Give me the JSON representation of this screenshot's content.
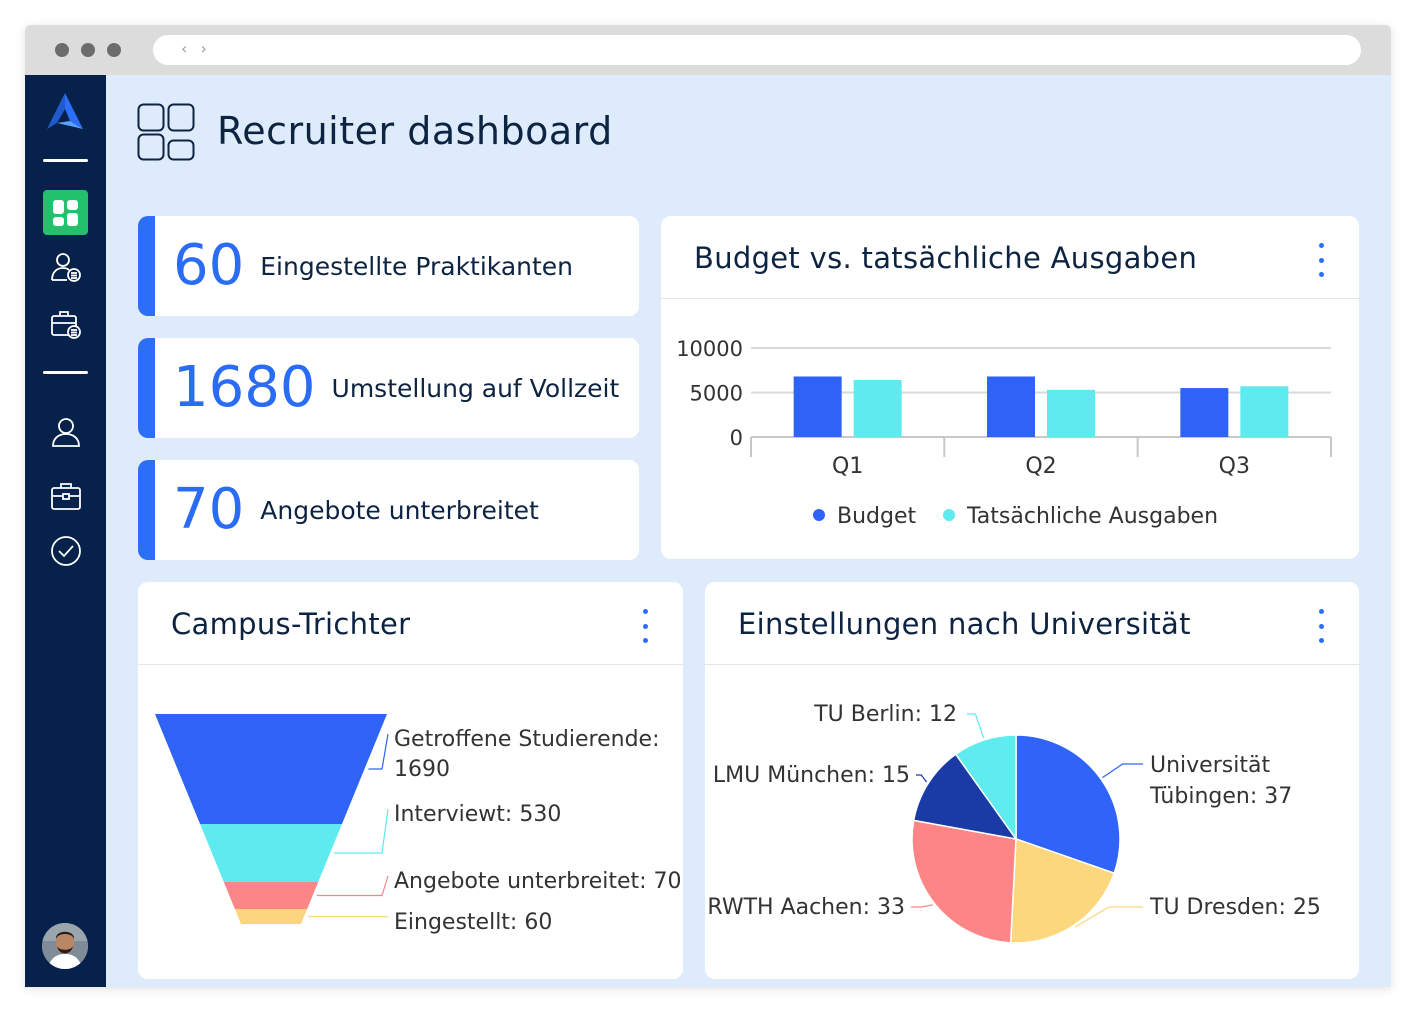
{
  "app": {
    "title": "Recruiter dashboard"
  },
  "browser": {
    "nav_arrows": "‹ ›"
  },
  "sidebar": {
    "items": [
      {
        "name": "dashboard",
        "icon": "dashboard-grid-icon",
        "active": true
      },
      {
        "name": "candidates",
        "icon": "user-list-icon",
        "active": false
      },
      {
        "name": "jobs-list",
        "icon": "briefcase-list-icon",
        "active": false
      },
      {
        "name": "profile",
        "icon": "user-icon",
        "active": false
      },
      {
        "name": "jobs",
        "icon": "briefcase-icon",
        "active": false
      },
      {
        "name": "tasks",
        "icon": "check-circle-icon",
        "active": false
      }
    ]
  },
  "kpis": [
    {
      "value": "60",
      "label": "Eingestellte Praktikanten"
    },
    {
      "value": "1680",
      "label": "Umstellung auf Vollzeit"
    },
    {
      "value": "70",
      "label": "Angebote unterbreitet"
    }
  ],
  "colors": {
    "accent": "#2b6ef7",
    "sidebar": "#06224b",
    "active_nav": "#23c16b",
    "background": "#deebfb",
    "budget": "#2f63f5",
    "actual": "#5eeaef",
    "funnel": [
      "#2f63f5",
      "#5eeaef",
      "#fb8686",
      "#fdd57e"
    ],
    "pie": [
      "#3063f7",
      "#fdd77d",
      "#fd8585",
      "#1a3aa6",
      "#5fecee"
    ]
  },
  "budget_card": {
    "title": "Budget vs. tatsächliche Ausgaben"
  },
  "funnel_card": {
    "title": "Campus-Trichter"
  },
  "university_card": {
    "title": "Einstellungen nach Universität"
  },
  "chart_data": [
    {
      "type": "bar",
      "title": "Budget vs. tatsächliche Ausgaben",
      "categories": [
        "Q1",
        "Q2",
        "Q3"
      ],
      "series": [
        {
          "name": "Budget",
          "values": [
            6800,
            6800,
            5500
          ]
        },
        {
          "name": "Tatsächliche Ausgaben",
          "values": [
            6400,
            5300,
            5700
          ]
        }
      ],
      "yticks": [
        "10000",
        "5000",
        "0"
      ],
      "ylim": [
        0,
        10000
      ],
      "grid": true,
      "legend": "bottom"
    },
    {
      "type": "funnel",
      "title": "Campus-Trichter",
      "stages": [
        {
          "label": "Getroffene Studierende: 1690",
          "value": 1690
        },
        {
          "label": "Interviewt: 530",
          "value": 530
        },
        {
          "label": "Angebote unterbreitet: 70",
          "value": 70
        },
        {
          "label": "Eingestellt: 60",
          "value": 60
        }
      ]
    },
    {
      "type": "pie",
      "title": "Einstellungen nach Universität",
      "slices": [
        {
          "label": "Universität",
          "label2": "Tübingen: 37",
          "value": 37
        },
        {
          "label": "TU Dresden: 25",
          "value": 25
        },
        {
          "label": "RWTH Aachen: 33",
          "value": 33
        },
        {
          "label": "LMU München: 15",
          "value": 15
        },
        {
          "label": "TU Berlin: 12",
          "value": 12
        }
      ]
    }
  ]
}
